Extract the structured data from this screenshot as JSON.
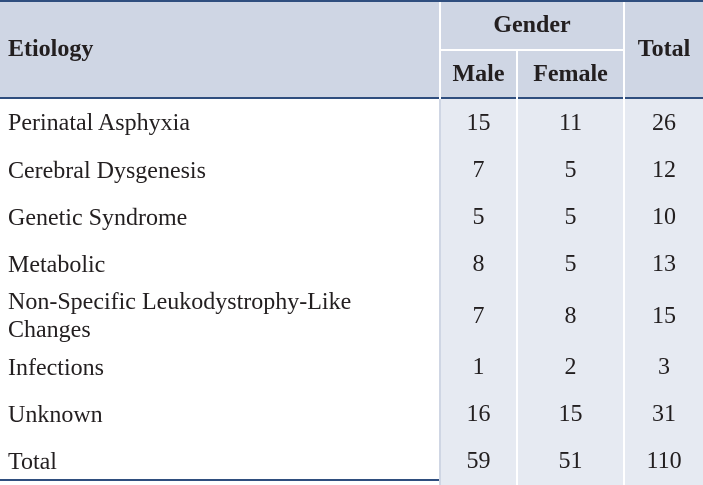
{
  "header": {
    "etiology": "Etiology",
    "gender": "Gender",
    "male": "Male",
    "female": "Female",
    "total": "Total"
  },
  "rows": [
    {
      "etiology": "Perinatal  Asphyxia",
      "male": "15",
      "female": "11",
      "total": "26"
    },
    {
      "etiology": "Cerebral Dysgenesis",
      "male": "7",
      "female": "5",
      "total": "12"
    },
    {
      "etiology": "Genetic Syndrome",
      "male": "5",
      "female": "5",
      "total": "10"
    },
    {
      "etiology": "Metabolic",
      "male": "8",
      "female": "5",
      "total": "13"
    },
    {
      "etiology": "Non-Specific Leukodystrophy-Like Changes",
      "male": "7",
      "female": "8",
      "total": "15"
    },
    {
      "etiology": "Infections",
      "male": "1",
      "female": "2",
      "total": "3"
    },
    {
      "etiology": "Unknown",
      "male": "16",
      "female": "15",
      "total": "31"
    },
    {
      "etiology": "Total",
      "male": "59",
      "female": "51",
      "total": "110"
    }
  ],
  "colors": {
    "header_bg": "#cfd6e4",
    "number_column_bg": "#e6eaf2",
    "rule": "#2f4e7e",
    "text": "#231f20"
  }
}
